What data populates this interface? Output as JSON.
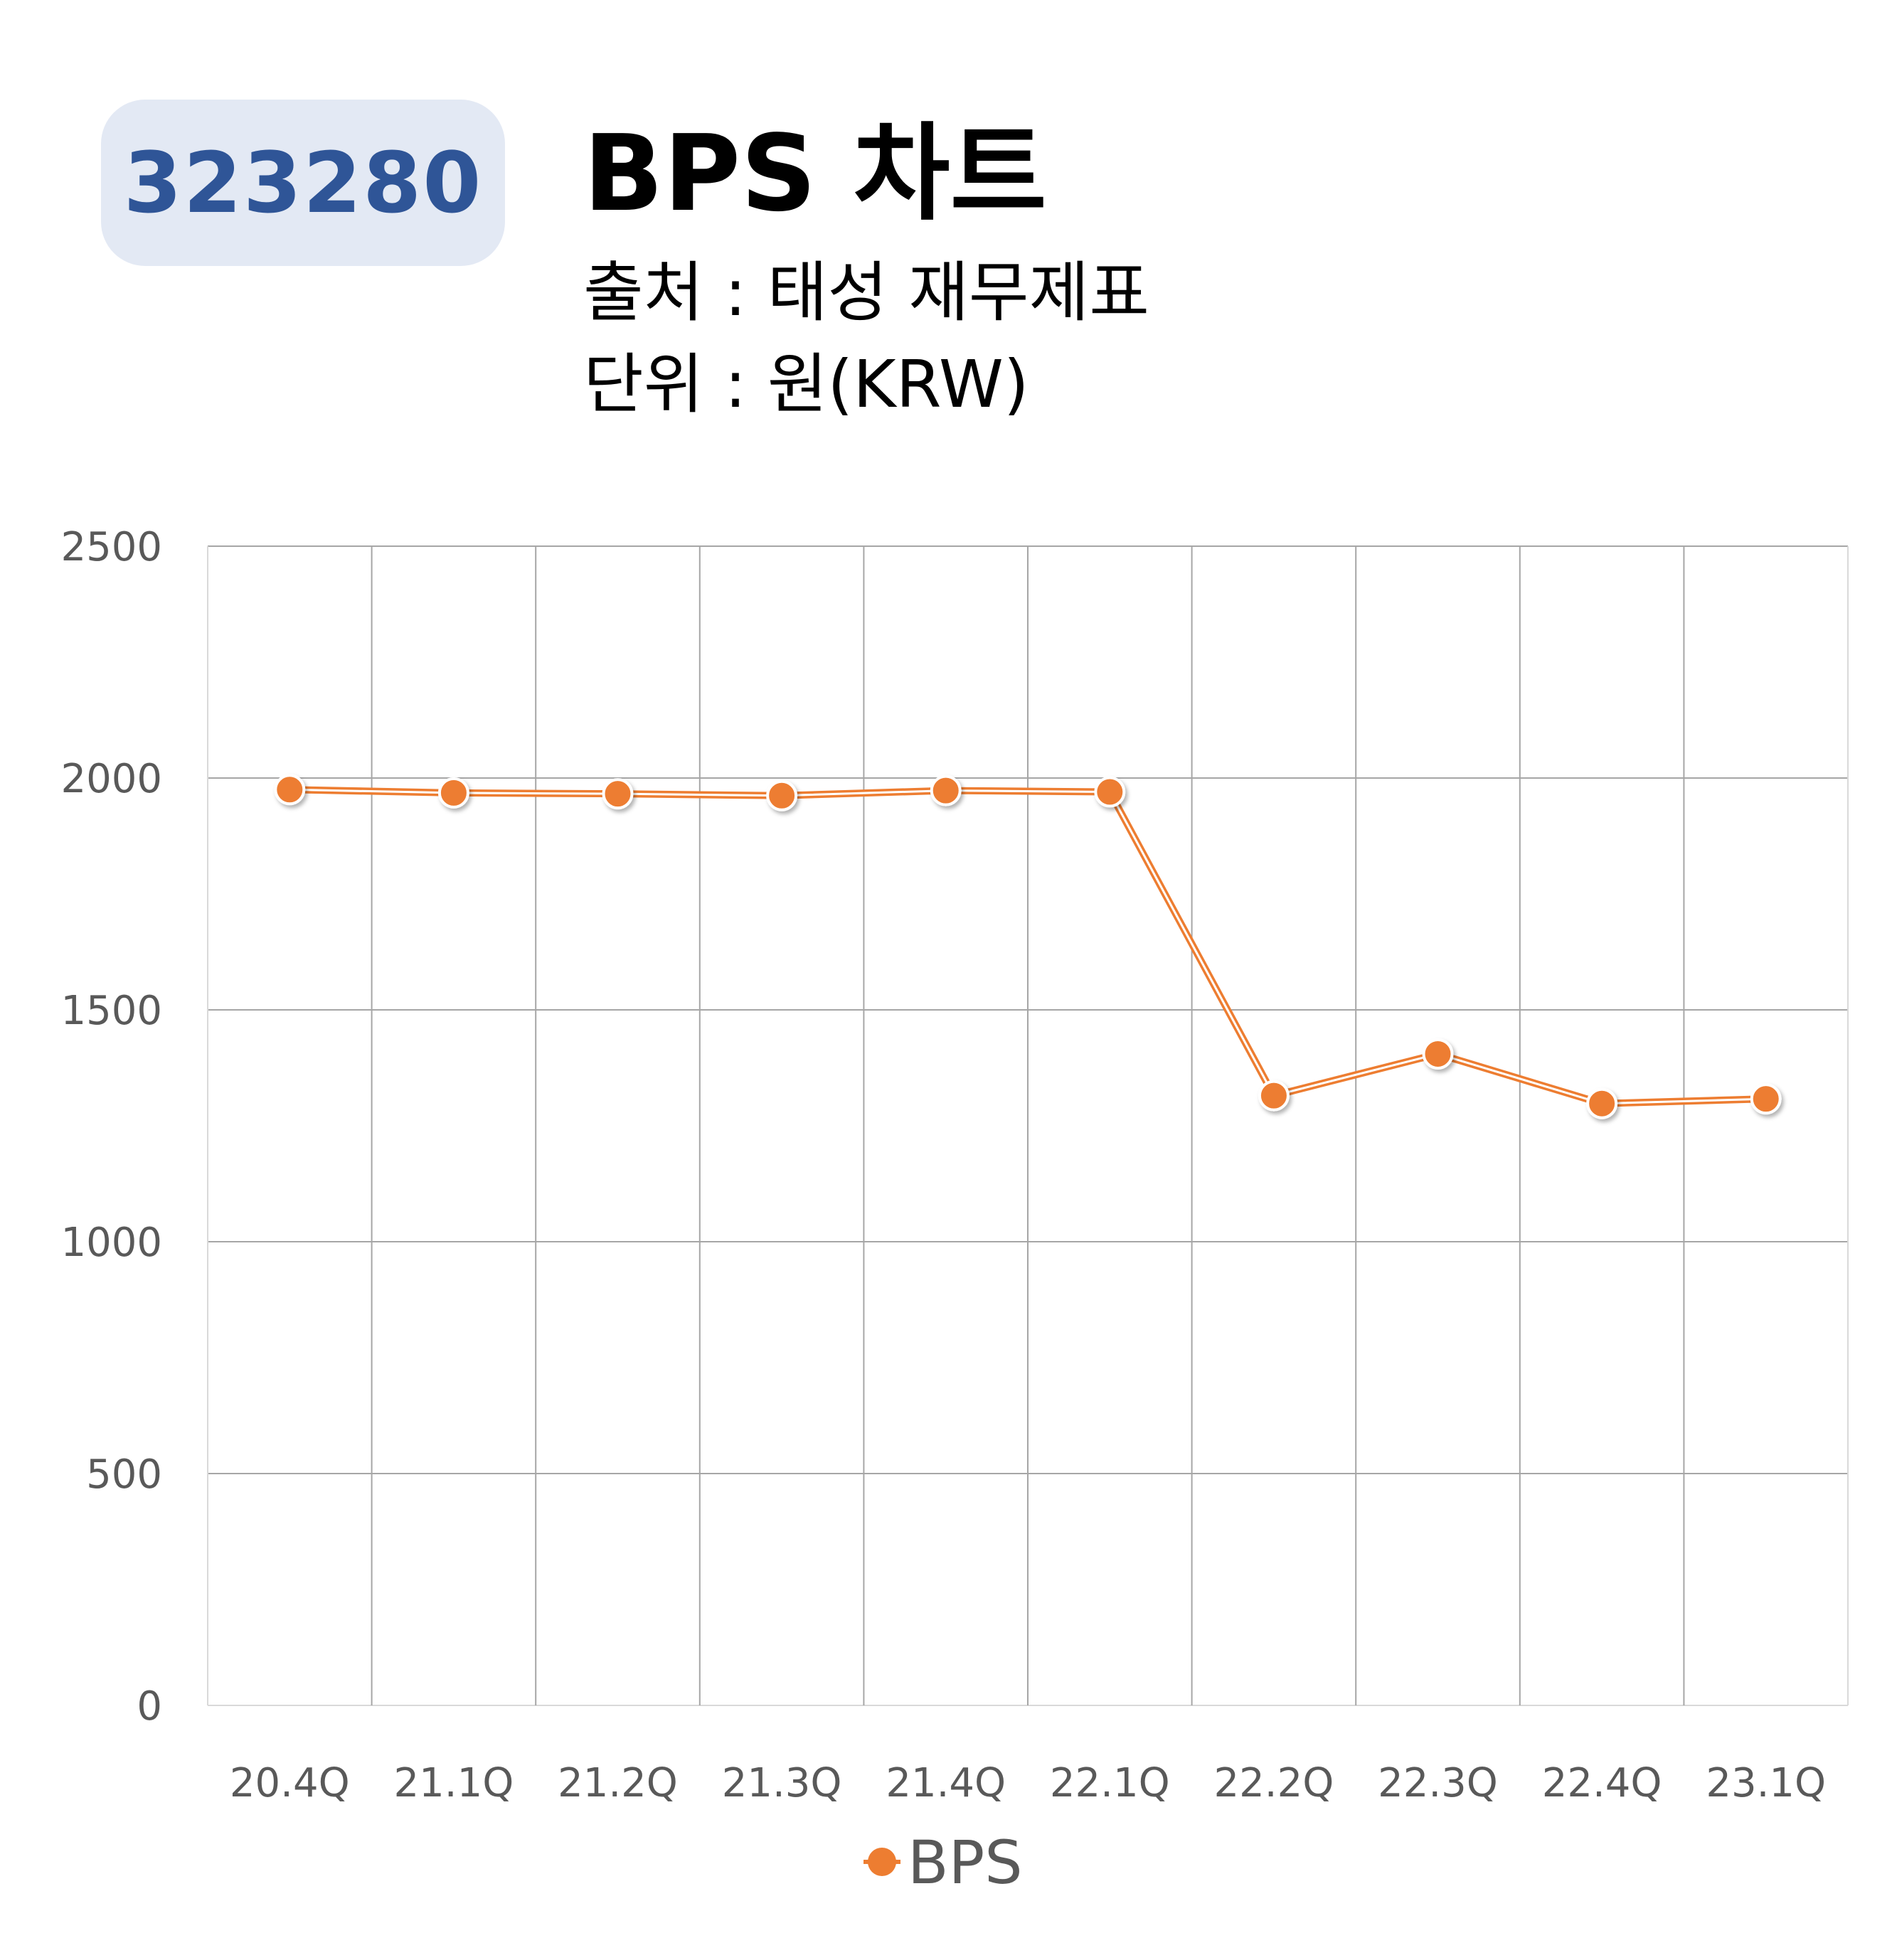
{
  "header": {
    "ticker": "323280",
    "title": "BPS 차트",
    "source_line": "출처 : 태성 재무제표",
    "unit_line": "단위 : 원(KRW)"
  },
  "colors": {
    "badge_bg": "#e3e9f4",
    "ticker_text": "#2f5597",
    "series": "#ed7d31",
    "grid": "#a6a6a6",
    "tick_text": "#595959"
  },
  "chart_data": {
    "type": "line",
    "categories": [
      "20.4Q",
      "21.1Q",
      "21.2Q",
      "21.3Q",
      "21.4Q",
      "22.1Q",
      "22.2Q",
      "22.3Q",
      "22.4Q",
      "23.1Q"
    ],
    "series": [
      {
        "name": "BPS",
        "color": "#ed7d31",
        "values": [
          1975,
          1968,
          1966,
          1962,
          1973,
          1970,
          1315,
          1405,
          1298,
          1308
        ]
      }
    ],
    "ylim": [
      0,
      2500
    ],
    "yticks": [
      0,
      500,
      1000,
      1500,
      2000,
      2500
    ],
    "grid": true,
    "legend": "bottom",
    "xlabel": "",
    "ylabel": ""
  }
}
